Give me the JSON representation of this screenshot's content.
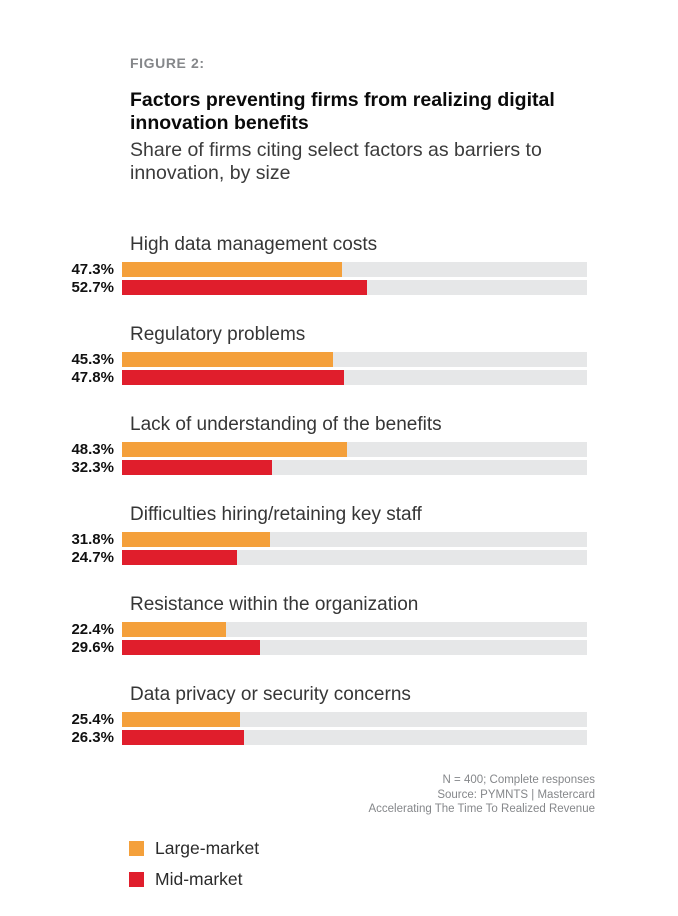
{
  "figure_label": "FIGURE 2:",
  "title": "Factors preventing firms from realizing digital innovation benefits",
  "subtitle": "Share of firms citing select factors as barriers to innovation, by size",
  "colors": {
    "large_market": "#F4A03B",
    "mid_market": "#E01E2C",
    "bar_track": "#E6E7E8",
    "figure_label_text": "#85878A",
    "footnote_text": "#85878A"
  },
  "chart_data": {
    "type": "bar",
    "orientation": "horizontal",
    "title": "Factors preventing firms from realizing digital innovation benefits",
    "subtitle": "Share of firms citing select factors as barriers to innovation, by size",
    "categories": [
      "High data management costs",
      "Regulatory problems",
      "Lack of understanding of the benefits",
      "Difficulties hiring/retaining key staff",
      "Resistance within the organization",
      "Data privacy or security concerns"
    ],
    "series": [
      {
        "name": "Large-market",
        "color": "#F4A03B",
        "values": [
          47.3,
          45.3,
          48.3,
          31.8,
          22.4,
          25.4
        ],
        "labels": [
          "47.3%",
          "45.3%",
          "48.3%",
          "31.8%",
          "22.4%",
          "25.4%"
        ]
      },
      {
        "name": "Mid-market",
        "color": "#E01E2C",
        "values": [
          52.7,
          47.8,
          32.3,
          24.7,
          29.6,
          26.3
        ],
        "labels": [
          "52.7%",
          "47.8%",
          "32.3%",
          "24.7%",
          "29.6%",
          "26.3%"
        ]
      }
    ],
    "xlim": [
      0,
      100
    ],
    "grid": false,
    "legend_position": "bottom-left",
    "value_label_position": "left-of-bar"
  },
  "footnotes": {
    "line1": "N = 400; Complete responses",
    "line2": "Source: PYMNTS  |  Mastercard",
    "line3": "Accelerating The Time To Realized Revenue"
  }
}
